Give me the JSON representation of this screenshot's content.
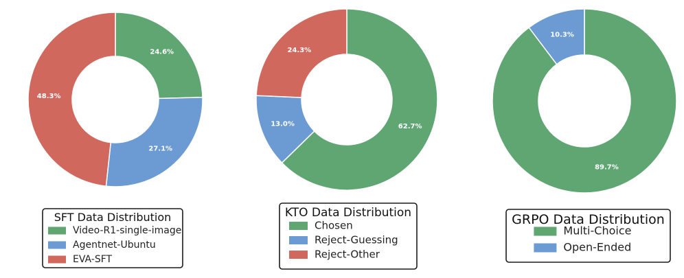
{
  "chart_data": [
    {
      "type": "pie",
      "style": "donut",
      "title": "SFT Data Distribution",
      "categories": [
        "Video-R1-single-image",
        "Agentnet-Ubuntu",
        "EVA-SFT"
      ],
      "values": [
        24.6,
        27.1,
        48.3
      ],
      "labels": [
        "24.6%",
        "27.1%",
        "48.3%"
      ],
      "colors": [
        "#5fa672",
        "#6b9bd2",
        "#d0685e"
      ],
      "legend": "bottom"
    },
    {
      "type": "pie",
      "style": "donut",
      "title": "KTO Data Distribution",
      "categories": [
        "Chosen",
        "Reject-Guessing",
        "Reject-Other"
      ],
      "values": [
        62.7,
        13.0,
        24.3
      ],
      "labels": [
        "62.7%",
        "13.0%",
        "24.3%"
      ],
      "colors": [
        "#5fa672",
        "#6b9bd2",
        "#d0685e"
      ],
      "legend": "bottom"
    },
    {
      "type": "pie",
      "style": "donut",
      "title": "GRPO Data Distribution",
      "categories": [
        "Multi-Choice",
        "Open-Ended"
      ],
      "values": [
        89.7,
        10.3
      ],
      "labels": [
        "89.7%",
        "10.3%"
      ],
      "colors": [
        "#5fa672",
        "#6b9bd2"
      ],
      "legend": "bottom"
    }
  ]
}
